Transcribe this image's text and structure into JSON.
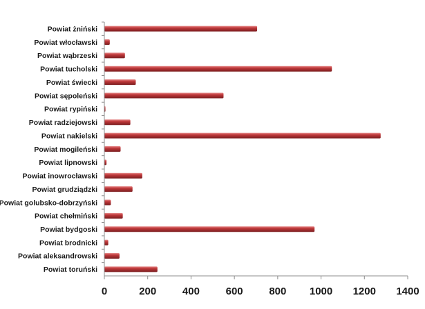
{
  "chart_data": {
    "type": "bar",
    "orientation": "horizontal",
    "categories": [
      "Powiat żniński",
      "Powiat włocławski",
      "Powiat wąbrzeski",
      "Powiat tucholski",
      "Powiat świecki",
      "Powiat sępoleński",
      "Powiat rypiński",
      "Powiat radziejowski",
      "Powiat nakielski",
      "Powiat mogileński",
      "Powiat lipnowski",
      "Powiat inowrocławski",
      "Powiat grudziądzki",
      "Powiat golubsko-dobrzyński",
      "Powiat chełmiński",
      "Powiat bydgoski",
      "Powiat brodnicki",
      "Powiat aleksandrowski",
      "Powiat toruński"
    ],
    "values": [
      705,
      25,
      95,
      1050,
      145,
      550,
      5,
      120,
      1275,
      75,
      10,
      175,
      130,
      30,
      85,
      970,
      18,
      70,
      245
    ],
    "xlim": [
      0,
      1400
    ],
    "xticks": [
      "0",
      "200",
      "400",
      "600",
      "800",
      "1000",
      "1200",
      "1400"
    ],
    "xtick_values": [
      0,
      200,
      400,
      600,
      800,
      1000,
      1200,
      1400
    ],
    "grid": false,
    "legend": "none",
    "bar_color": "#c0393b",
    "bar_highlight": "#e68a8a",
    "bar_shadow": "#7a1d1f",
    "axis_color": "#8c8c8c"
  }
}
